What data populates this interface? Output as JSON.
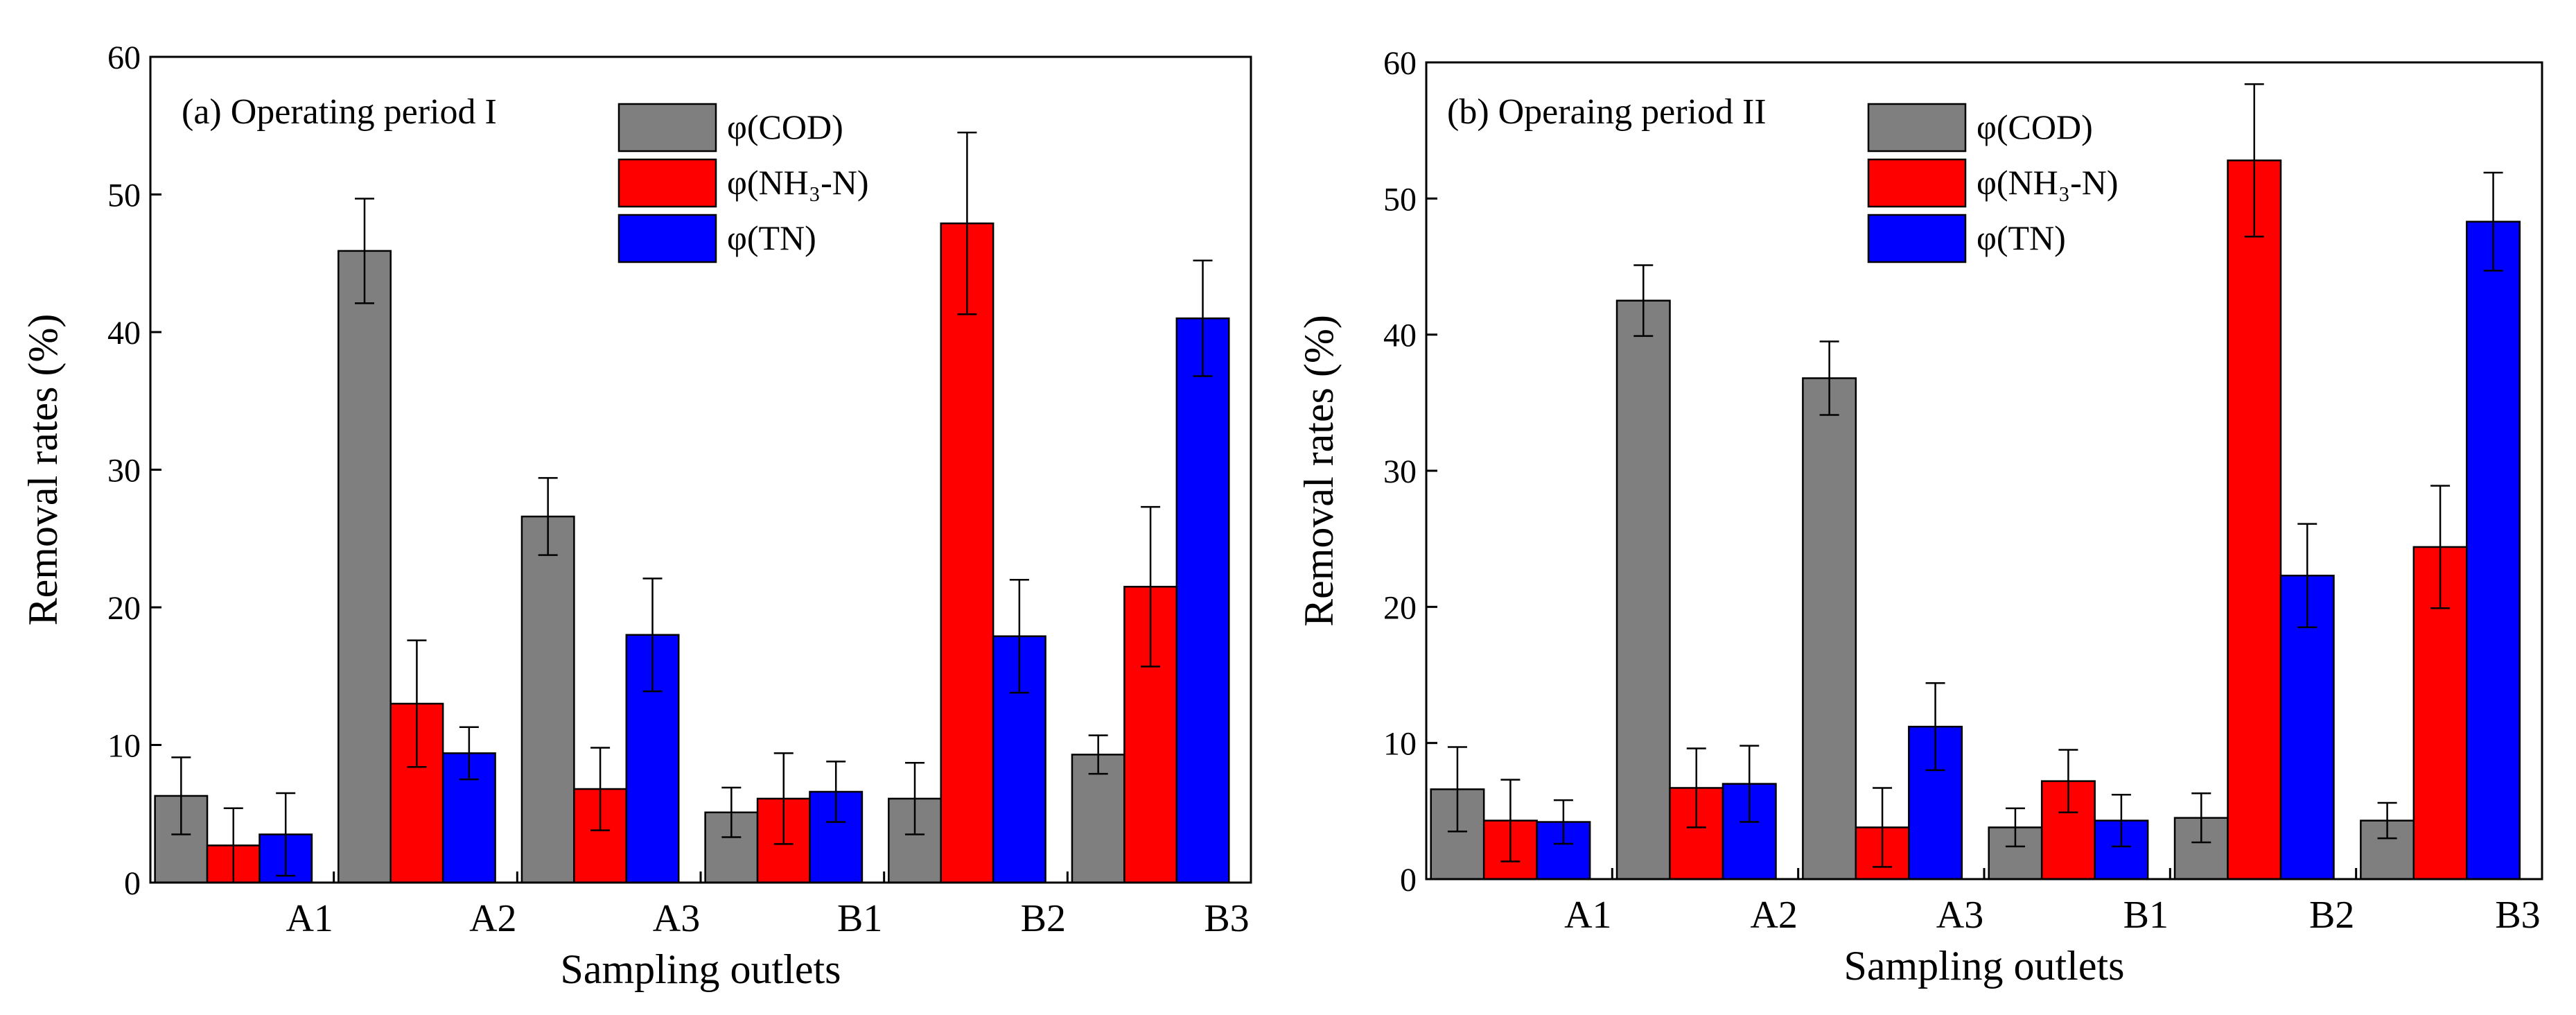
{
  "chart_data": [
    {
      "type": "bar",
      "title": "(a) Operating period I",
      "xlabel": "Sampling outlets",
      "ylabel": "Removal rates (%)",
      "ylim": [
        0,
        60
      ],
      "yticks": [
        0,
        10,
        20,
        30,
        40,
        50,
        60
      ],
      "categories": [
        "A1",
        "A2",
        "A3",
        "B1",
        "B2",
        "B3"
      ],
      "legend_position": "top-center",
      "series": [
        {
          "name": "φ(COD)",
          "color": "#7f7f7f",
          "values": [
            6.3,
            45.9,
            26.6,
            5.1,
            6.1,
            9.3
          ],
          "errors": [
            2.8,
            3.8,
            2.8,
            1.8,
            2.6,
            1.4
          ]
        },
        {
          "name": "φ(NH₃-N)",
          "color": "#ff0000",
          "values": [
            2.7,
            13.0,
            6.8,
            6.1,
            47.9,
            21.5
          ],
          "errors": [
            2.7,
            4.6,
            3.0,
            3.3,
            6.6,
            5.8
          ]
        },
        {
          "name": "φ(TN)",
          "color": "#0000ff",
          "values": [
            3.5,
            9.4,
            18.0,
            6.6,
            17.9,
            41.0
          ],
          "errors": [
            3.0,
            1.9,
            4.1,
            2.2,
            4.1,
            4.2
          ]
        }
      ]
    },
    {
      "type": "bar",
      "title": "(b) Operaing period II",
      "xlabel": "Sampling outlets",
      "ylabel": "Removal rates (%)",
      "ylim": [
        0,
        60
      ],
      "yticks": [
        0,
        10,
        20,
        30,
        40,
        50,
        60
      ],
      "categories": [
        "A1",
        "A2",
        "A3",
        "B1",
        "B2",
        "B3"
      ],
      "legend_position": "top-center",
      "series": [
        {
          "name": "φ(COD)",
          "color": "#7f7f7f",
          "values": [
            6.6,
            42.5,
            36.8,
            3.8,
            4.5,
            4.3
          ],
          "errors": [
            3.1,
            2.6,
            2.7,
            1.4,
            1.8,
            1.3
          ]
        },
        {
          "name": "φ(NH₃-N)",
          "color": "#ff0000",
          "values": [
            4.3,
            6.7,
            3.8,
            7.2,
            52.8,
            24.4
          ],
          "errors": [
            3.0,
            2.9,
            2.9,
            2.3,
            5.6,
            4.5
          ]
        },
        {
          "name": "φ(TN)",
          "color": "#0000ff",
          "values": [
            4.2,
            7.0,
            11.2,
            4.3,
            22.3,
            48.3
          ],
          "errors": [
            1.6,
            2.8,
            3.2,
            1.9,
            3.8,
            3.6
          ]
        }
      ]
    }
  ]
}
